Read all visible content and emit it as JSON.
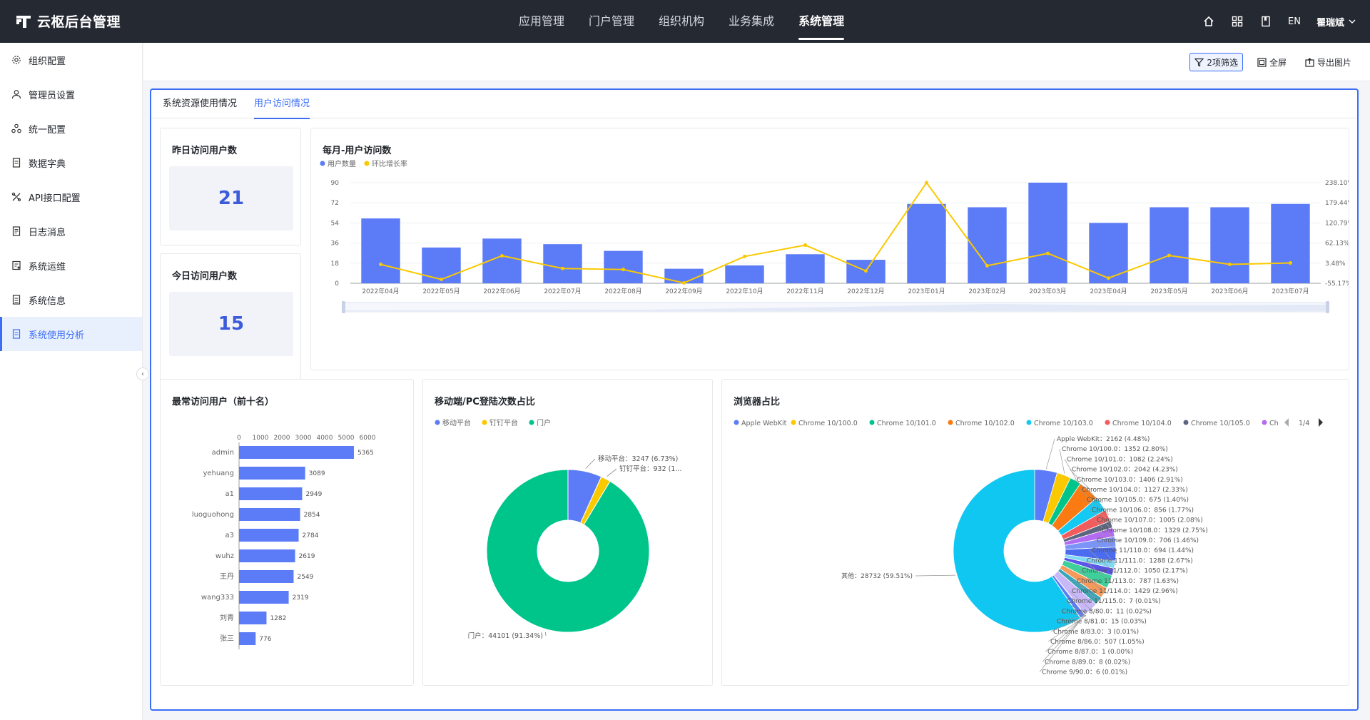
{
  "app": {
    "title": "云枢后台管理"
  },
  "topnav": {
    "items": [
      "应用管理",
      "门户管理",
      "组织机构",
      "业务集成",
      "系统管理"
    ],
    "active": 4
  },
  "topright": {
    "lang": "EN",
    "user": "瞿瑞斌",
    "icons": [
      "home-icon",
      "grid-icon",
      "book-icon"
    ]
  },
  "sidebar": {
    "active": 8,
    "items": [
      {
        "label": "组织配置",
        "icon": "gear-icon"
      },
      {
        "label": "管理员设置",
        "icon": "user-icon"
      },
      {
        "label": "统一配置",
        "icon": "cluster-icon"
      },
      {
        "label": "数据字典",
        "icon": "doc-icon"
      },
      {
        "label": "API接口配置",
        "icon": "api-icon"
      },
      {
        "label": "日志消息",
        "icon": "log-icon"
      },
      {
        "label": "系统运维",
        "icon": "ops-icon"
      },
      {
        "label": "系统信息",
        "icon": "info-icon"
      },
      {
        "label": "系统使用分析",
        "icon": "analysis-icon"
      }
    ]
  },
  "toolbar": {
    "filter": "2项筛选",
    "fullscreen": "全屏",
    "export": "导出图片"
  },
  "tabs": {
    "items": [
      "系统资源使用情况",
      "用户访问情况"
    ],
    "active": 1
  },
  "stats": {
    "yesterday": {
      "title": "昨日访问用户数",
      "value": "21"
    },
    "today": {
      "title": "今日访问用户数",
      "value": "15"
    }
  },
  "chart_data": [
    {
      "type": "bar",
      "title": "每月-用户访问数",
      "legend": [
        "用户数量",
        "环比增长率"
      ],
      "categories": [
        "2022年04月",
        "2022年05月",
        "2022年06月",
        "2022年07月",
        "2022年08月",
        "2022年09月",
        "2022年10月",
        "2022年11月",
        "2022年12月",
        "2023年01月",
        "2023年02月",
        "2023年03月",
        "2023年04月",
        "2023年05月",
        "2023年06月",
        "2023年07月"
      ],
      "series": [
        {
          "name": "用户数量",
          "type": "bar",
          "axis": "left",
          "values": [
            58,
            32,
            40,
            35,
            29,
            13,
            16,
            26,
            21,
            71,
            68,
            90,
            54,
            68,
            68,
            71
          ],
          "color": "#5b7bf7"
        },
        {
          "name": "环比增长率",
          "type": "line",
          "axis": "right",
          "values": [
            0,
            -44,
            25,
            -12,
            -15,
            -54,
            23,
            56,
            -19,
            238,
            -4,
            32,
            -40,
            26,
            0,
            4
          ],
          "color": "#fac900"
        }
      ],
      "yticks_left": [
        "0",
        "18",
        "36",
        "54",
        "72",
        "90"
      ],
      "yticks_right": [
        "-55.17%",
        "3.48%",
        "62.13%",
        "120.79%",
        "179.44%",
        "238.10%"
      ],
      "ylim": [
        0,
        90
      ],
      "ylim_right": [
        -55.17,
        238.1
      ]
    },
    {
      "type": "bar",
      "title": "最常访问用户（前十名）",
      "orientation": "horizontal",
      "categories": [
        "admin",
        "yehuang",
        "a1",
        "luoguohong",
        "a3",
        "wuhz",
        "王丹",
        "wang333",
        "刘青",
        "张三"
      ],
      "values": [
        5365,
        3089,
        2949,
        2854,
        2784,
        2619,
        2549,
        2319,
        1282,
        776
      ],
      "xticks": [
        "0",
        "1000",
        "2000",
        "3000",
        "4000",
        "5000",
        "6000"
      ],
      "xlim": [
        0,
        6000
      ],
      "color": "#5b7bf7"
    },
    {
      "type": "pie",
      "title": "移动端/PC登陆次数占比",
      "legend": [
        "移动平台",
        "钉钉平台",
        "门户"
      ],
      "slices": [
        {
          "name": "移动平台",
          "value": 3247,
          "color": "#5b7bf7",
          "label": "移动平台：3247 (6.73%)"
        },
        {
          "name": "钉钉平台",
          "value": 932,
          "color": "#fac900",
          "label": "钉钉平台：932 (1..."
        },
        {
          "name": "门户",
          "value": 44101,
          "color": "#00c58a",
          "label": "门户：44101 (91.34%)"
        }
      ]
    },
    {
      "type": "pie",
      "title": "浏览器占比",
      "legend": [
        "Apple WebKit",
        "Chrome 10/100.0",
        "Chrome 10/101.0",
        "Chrome 10/102.0",
        "Chrome 10/103.0",
        "Chrome 10/104.0",
        "Chrome 10/105.0",
        "Ch"
      ],
      "legend_page": "1/4",
      "slices": [
        {
          "name": "Apple WebKit",
          "value": 2162,
          "color": "#5b7bf7",
          "label": "Apple WebKit：2162 (4.48%)"
        },
        {
          "name": "Chrome 10/100.0",
          "value": 1352,
          "color": "#fac900",
          "label": "Chrome 10/100.0：1352 (2.80%)"
        },
        {
          "name": "Chrome 10/101.0",
          "value": 1082,
          "color": "#00c58a",
          "label": "Chrome 10/101.0：1082 (2.24%)"
        },
        {
          "name": "Chrome 10/102.0",
          "value": 2042,
          "color": "#fb7a12",
          "label": "Chrome 10/102.0：2042 (4.23%)"
        },
        {
          "name": "Chrome 10/103.0",
          "value": 1406,
          "color": "#14c9f2",
          "label": "Chrome 10/103.0：1406 (2.91%)"
        },
        {
          "name": "Chrome 10/104.0",
          "value": 1127,
          "color": "#f25c5c",
          "label": "Chrome 10/104.0：1127 (2.33%)"
        },
        {
          "name": "Chrome 10/105.0",
          "value": 675,
          "color": "#5d6680",
          "label": "Chrome 10/105.0：675 (1.40%)"
        },
        {
          "name": "Chrome 10/106.0",
          "value": 856,
          "color": "#b36bf2",
          "label": "Chrome 10/106.0：856 (1.77%)"
        },
        {
          "name": "Chrome 10/107.0",
          "value": 1005,
          "color": "#7b94f8",
          "label": "Chrome 10/107.0：1005 (2.08%)"
        },
        {
          "name": "Chrome 10/108.0",
          "value": 1329,
          "color": "#4b6cf0",
          "label": "Chrome 10/108.0：1329 (2.75%)"
        },
        {
          "name": "Chrome 10/109.0",
          "value": 706,
          "color": "#7fd9f5",
          "label": "Chrome 10/109.0：706 (1.46%)"
        },
        {
          "name": "Chrome 11/110.0",
          "value": 694,
          "color": "#5a55e8",
          "label": "Chrome 11/110.0：694 (1.44%)"
        },
        {
          "name": "Chrome 11/111.0",
          "value": 1288,
          "color": "#3ecf9a",
          "label": "Chrome 11/111.0：1288 (2.67%)"
        },
        {
          "name": "Chrome 11/112.0",
          "value": 1050,
          "color": "#f59a5a",
          "label": "Chrome 11/112.0：1050 (2.17%)"
        },
        {
          "name": "Chrome 11/113.0",
          "value": 787,
          "color": "#3aa6b8",
          "label": "Chrome 11/113.0：787 (1.63%)"
        },
        {
          "name": "Chrome 11/114.0",
          "value": 1429,
          "color": "#c9b8f8",
          "label": "Chrome 11/114.0：1429 (2.96%)"
        },
        {
          "name": "Chrome 11/115.0",
          "value": 7,
          "color": "#9aa5ff",
          "label": "Chrome 11/115.0：7 (0.01%)"
        },
        {
          "name": "Chrome 8/80.0",
          "value": 11,
          "color": "#ffd866",
          "label": "Chrome 8/80.0：11 (0.02%)"
        },
        {
          "name": "Chrome 8/81.0",
          "value": 15,
          "color": "#66dcb0",
          "label": "Chrome 8/81.0：15 (0.03%)"
        },
        {
          "name": "Chrome 8/83.0",
          "value": 3,
          "color": "#ffa866",
          "label": "Chrome 8/83.0：3 (0.01%)"
        },
        {
          "name": "Chrome 8/86.0",
          "value": 507,
          "color": "#5b7bf7",
          "label": "Chrome 8/86.0：507 (1.05%)"
        },
        {
          "name": "Chrome 8/87.0",
          "value": 1,
          "color": "#fac900",
          "label": "Chrome 8/87.0：1 (0.00%)"
        },
        {
          "name": "Chrome 8/89.0",
          "value": 8,
          "color": "#00c58a",
          "label": "Chrome 8/89.0：8 (0.02%)"
        },
        {
          "name": "Chrome 9/90.0",
          "value": 6,
          "color": "#fb7a12",
          "label": "Chrome 9/90.0：6 (0.01%)"
        },
        {
          "name": "其他",
          "value": 28732,
          "color": "#0fc7f0",
          "label": "其他：28732 (59.51%)"
        }
      ]
    }
  ]
}
